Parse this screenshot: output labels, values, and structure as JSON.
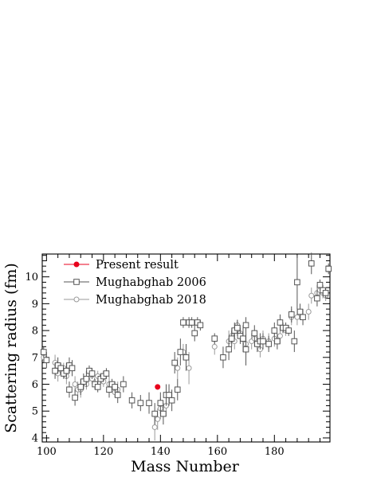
{
  "chart_data": {
    "type": "scatter",
    "xlabel": "Mass Number",
    "ylabel": "Scattering radius (fm)",
    "xlim": [
      98.5,
      199.5
    ],
    "ylim": [
      3.85,
      10.85
    ],
    "x_ticks": [
      100,
      120,
      140,
      160,
      180
    ],
    "y_ticks": [
      4,
      5,
      6,
      7,
      8,
      9,
      10
    ],
    "legend_position": "top-left",
    "grid": false,
    "series": [
      {
        "name": "Present result",
        "marker": "filled-circle",
        "color": "#e8001c",
        "points": [
          [
            139,
            5.9,
            0.1
          ]
        ]
      },
      {
        "name": "Mughabghab 2006",
        "marker": "open-square",
        "color": "#555555",
        "points": [
          [
            99,
            7.2,
            0.2
          ],
          [
            100,
            6.9,
            0.3
          ],
          [
            103,
            6.5,
            0.3
          ],
          [
            104,
            6.7,
            0.3
          ],
          [
            105,
            6.6,
            0.2
          ],
          [
            106,
            6.4,
            0.2
          ],
          [
            107,
            6.5,
            0.3
          ],
          [
            108,
            6.7,
            0.3
          ],
          [
            108,
            5.8,
            0.3
          ],
          [
            109,
            6.6,
            0.3
          ],
          [
            110,
            5.5,
            0.3
          ],
          [
            112,
            5.9,
            0.3
          ],
          [
            113,
            6.1,
            0.3
          ],
          [
            114,
            6.2,
            0.3
          ],
          [
            115,
            6.5,
            0.2
          ],
          [
            116,
            6.4,
            0.2
          ],
          [
            117,
            6.0,
            0.2
          ],
          [
            118,
            5.9,
            0.2
          ],
          [
            119,
            6.2,
            0.2
          ],
          [
            120,
            6.3,
            0.2
          ],
          [
            121,
            6.4,
            0.2
          ],
          [
            122,
            5.8,
            0.3
          ],
          [
            123,
            6.0,
            0.2
          ],
          [
            124,
            5.9,
            0.2
          ],
          [
            125,
            5.6,
            0.3
          ],
          [
            127,
            6.0,
            0.3
          ],
          [
            130,
            5.4,
            0.3
          ],
          [
            133,
            5.3,
            0.3
          ],
          [
            136,
            5.3,
            0.4
          ],
          [
            138,
            4.9,
            0.4
          ],
          [
            140,
            5.3,
            0.4
          ],
          [
            141,
            4.9,
            0.4
          ],
          [
            142,
            5.6,
            0.4
          ],
          [
            143,
            5.6,
            0.4
          ],
          [
            144,
            5.4,
            0.4
          ],
          [
            145,
            6.8,
            0.4
          ],
          [
            146,
            5.8,
            0.4
          ],
          [
            147,
            7.2,
            0.5
          ],
          [
            148,
            8.3,
            0.2
          ],
          [
            149,
            7.0,
            0.5
          ],
          [
            150,
            8.3,
            0.2
          ],
          [
            151,
            8.3,
            0.2
          ],
          [
            152,
            7.9,
            0.3
          ],
          [
            153,
            8.3,
            0.2
          ],
          [
            154,
            8.2,
            0.2
          ],
          [
            159,
            7.7,
            0.2
          ],
          [
            162,
            7.0,
            0.4
          ],
          [
            164,
            7.3,
            0.4
          ],
          [
            165,
            7.7,
            0.3
          ],
          [
            166,
            8.0,
            0.3
          ],
          [
            167,
            8.1,
            0.3
          ],
          [
            168,
            7.8,
            0.3
          ],
          [
            169,
            7.7,
            0.5
          ],
          [
            170,
            8.2,
            0.3
          ],
          [
            170,
            7.3,
            0.6
          ],
          [
            173,
            7.9,
            0.3
          ],
          [
            174,
            7.5,
            0.3
          ],
          [
            175,
            7.6,
            0.3
          ],
          [
            176,
            7.6,
            0.3
          ],
          [
            178,
            7.5,
            0.3
          ],
          [
            180,
            8.0,
            0.3
          ],
          [
            181,
            7.6,
            0.3
          ],
          [
            182,
            8.3,
            0.3
          ],
          [
            183,
            8.1,
            0.2
          ],
          [
            184,
            8.1,
            0.2
          ],
          [
            185,
            8.0,
            0.2
          ],
          [
            186,
            8.6,
            0.3
          ],
          [
            187,
            7.6,
            0.4
          ],
          [
            188,
            9.8,
            1.0
          ],
          [
            189,
            8.7,
            0.3
          ],
          [
            190,
            8.5,
            0.3
          ],
          [
            193,
            10.5,
            0.4
          ],
          [
            195,
            9.2,
            0.3
          ],
          [
            196,
            9.7,
            0.2
          ],
          [
            197,
            9.5,
            0.2
          ],
          [
            198,
            9.4,
            0.2
          ],
          [
            199,
            10.3,
            0.2
          ]
        ]
      },
      {
        "name": "Mughabghab 2018",
        "marker": "open-circle",
        "color": "#9a9a9a",
        "points": [
          [
            99,
            7.0,
            0.2
          ],
          [
            103,
            6.8,
            0.3
          ],
          [
            104,
            6.4,
            0.3
          ],
          [
            106,
            6.6,
            0.2
          ],
          [
            107,
            6.3,
            0.3
          ],
          [
            110,
            6.0,
            0.3
          ],
          [
            111,
            5.8,
            0.3
          ],
          [
            112,
            5.8,
            0.3
          ],
          [
            114,
            6.0,
            0.2
          ],
          [
            116,
            6.2,
            0.2
          ],
          [
            118,
            6.3,
            0.2
          ],
          [
            120,
            6.1,
            0.2
          ],
          [
            122,
            6.0,
            0.3
          ],
          [
            124,
            5.7,
            0.2
          ],
          [
            125,
            5.8,
            0.3
          ],
          [
            138,
            4.4,
            0.5
          ],
          [
            139,
            4.7,
            0.4
          ],
          [
            140,
            5.1,
            0.4
          ],
          [
            142,
            5.2,
            0.4
          ],
          [
            146,
            6.6,
            0.4
          ],
          [
            148,
            7.2,
            0.3
          ],
          [
            150,
            6.6,
            0.6
          ],
          [
            159,
            7.4,
            0.3
          ],
          [
            164,
            7.6,
            0.4
          ],
          [
            165,
            7.8,
            0.3
          ],
          [
            166,
            7.6,
            0.3
          ],
          [
            167,
            8.2,
            0.2
          ],
          [
            168,
            7.9,
            0.3
          ],
          [
            170,
            7.5,
            0.4
          ],
          [
            172,
            7.6,
            0.3
          ],
          [
            173,
            7.7,
            0.3
          ],
          [
            175,
            7.3,
            0.3
          ],
          [
            176,
            7.7,
            0.3
          ],
          [
            178,
            7.6,
            0.3
          ],
          [
            180,
            7.7,
            0.3
          ],
          [
            182,
            7.8,
            0.3
          ],
          [
            184,
            8.0,
            0.2
          ],
          [
            186,
            8.5,
            0.3
          ],
          [
            188,
            8.5,
            0.3
          ],
          [
            192,
            8.7,
            0.3
          ],
          [
            193,
            9.3,
            0.3
          ],
          [
            195,
            9.4,
            0.3
          ],
          [
            196,
            9.5,
            0.2
          ],
          [
            197,
            9.4,
            0.2
          ],
          [
            198,
            9.3,
            0.2
          ]
        ]
      }
    ]
  }
}
